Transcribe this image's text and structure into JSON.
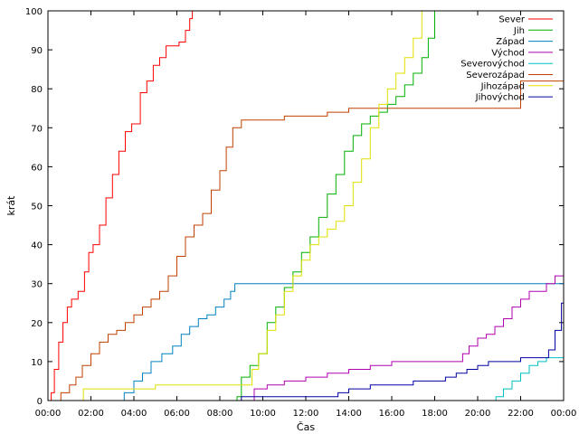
{
  "chart_data": {
    "type": "line",
    "title": "",
    "xlabel": "Čas",
    "ylabel": "krát",
    "xlim": [
      0,
      24
    ],
    "ylim": [
      0,
      100
    ],
    "x_ticks": [
      {
        "value": 0,
        "label": "00:00"
      },
      {
        "value": 2,
        "label": "02:00"
      },
      {
        "value": 4,
        "label": "04:00"
      },
      {
        "value": 6,
        "label": "06:00"
      },
      {
        "value": 8,
        "label": "08:00"
      },
      {
        "value": 10,
        "label": "10:00"
      },
      {
        "value": 12,
        "label": "12:00"
      },
      {
        "value": 14,
        "label": "14:00"
      },
      {
        "value": 16,
        "label": "16:00"
      },
      {
        "value": 18,
        "label": "18:00"
      },
      {
        "value": 20,
        "label": "20:00"
      },
      {
        "value": 22,
        "label": "22:00"
      },
      {
        "value": 24,
        "label": "00:00"
      }
    ],
    "y_ticks": [
      0,
      10,
      20,
      30,
      40,
      50,
      60,
      70,
      80,
      90,
      100
    ],
    "grid": false,
    "legend_position": "top-right",
    "series": [
      {
        "name": "Sever",
        "color": "#ff0000",
        "x": [
          0.1,
          0.15,
          0.3,
          0.5,
          0.7,
          0.9,
          1.1,
          1.4,
          1.7,
          1.9,
          2.1,
          2.4,
          2.7,
          3.0,
          3.3,
          3.6,
          3.9,
          4.3,
          4.6,
          4.9,
          5.2,
          5.5,
          5.8,
          6.1,
          6.4,
          6.6,
          6.72
        ],
        "y": [
          0,
          2,
          8,
          15,
          20,
          24,
          26,
          28,
          33,
          38,
          40,
          45,
          52,
          58,
          64,
          69,
          71,
          79,
          82,
          86,
          88,
          91,
          91,
          92,
          95,
          98,
          100
        ]
      },
      {
        "name": "Jih",
        "color": "#00b000",
        "x": [
          0,
          8.8,
          9.0,
          9.4,
          9.8,
          10.2,
          10.6,
          11.0,
          11.4,
          11.8,
          12.2,
          12.6,
          13.0,
          13.4,
          13.8,
          14.2,
          14.6,
          15.0,
          15.4,
          15.8,
          16.2,
          16.6,
          17.0,
          17.4,
          17.7,
          18.0
        ],
        "y": [
          0,
          1,
          6,
          9,
          12,
          20,
          24,
          29,
          33,
          38,
          42,
          47,
          53,
          58,
          64,
          68,
          71,
          73,
          74,
          76,
          78,
          81,
          84,
          88,
          93,
          100
        ]
      },
      {
        "name": "Západ",
        "color": "#0080c0",
        "x": [
          0,
          3.5,
          3.55,
          4.0,
          4.4,
          4.8,
          5.3,
          5.8,
          6.2,
          6.6,
          7.0,
          7.4,
          7.8,
          8.2,
          8.5,
          8.7,
          24.0
        ],
        "y": [
          0,
          0,
          2,
          5,
          7,
          10,
          12,
          14,
          17,
          19,
          21,
          22,
          24,
          26,
          28,
          30,
          30
        ]
      },
      {
        "name": "Východ",
        "color": "#b000b0",
        "x": [
          0,
          9.3,
          9.6,
          10.2,
          11.0,
          12.0,
          13.0,
          14.0,
          15.0,
          16.0,
          17.0,
          18.0,
          19.0,
          19.3,
          19.6,
          20.0,
          20.4,
          20.8,
          21.2,
          21.6,
          22.0,
          22.4,
          22.8,
          23.2,
          23.6,
          24.0
        ],
        "y": [
          0,
          0,
          3,
          4,
          5,
          6,
          7,
          8,
          9,
          10,
          10,
          10,
          10,
          12,
          14,
          16,
          17,
          19,
          21,
          24,
          26,
          28,
          28,
          30,
          32,
          34
        ]
      },
      {
        "name": "Severovýchod",
        "color": "#00c0c0",
        "x": [
          0,
          20.8,
          20.85,
          21.2,
          21.6,
          22.0,
          22.4,
          22.8,
          23.2,
          23.6,
          24.0
        ],
        "y": [
          0,
          0,
          1,
          3,
          5,
          7,
          9,
          10,
          11,
          11,
          11
        ]
      },
      {
        "name": "Severozápad",
        "color": "#c04000",
        "x": [
          0,
          0.6,
          1.0,
          1.3,
          1.6,
          2.0,
          2.4,
          2.8,
          3.2,
          3.6,
          4.0,
          4.4,
          4.8,
          5.2,
          5.6,
          6.0,
          6.4,
          6.8,
          7.2,
          7.6,
          8.0,
          8.3,
          8.6,
          9.0,
          11.0,
          12.5,
          13.0,
          14.0,
          16.0,
          18.0,
          21.9,
          22.0,
          24.0
        ],
        "y": [
          0,
          2,
          4,
          6,
          9,
          12,
          15,
          17,
          18,
          20,
          22,
          24,
          26,
          28,
          32,
          37,
          42,
          45,
          48,
          54,
          59,
          65,
          70,
          72,
          73,
          73,
          74,
          75,
          75,
          75,
          75,
          82,
          82
        ]
      },
      {
        "name": "Jihozápad",
        "color": "#e0e000",
        "x": [
          0,
          1.6,
          1.65,
          5.0,
          8.0,
          9.2,
          9.5,
          9.8,
          10.2,
          10.6,
          11.0,
          11.4,
          11.8,
          12.2,
          12.6,
          13.0,
          13.4,
          13.8,
          14.2,
          14.6,
          15.0,
          15.4,
          15.8,
          16.2,
          16.6,
          17.0,
          17.4
        ],
        "y": [
          0,
          0,
          3,
          4,
          4,
          4,
          8,
          12,
          18,
          22,
          28,
          32,
          36,
          40,
          42,
          44,
          46,
          50,
          56,
          62,
          70,
          76,
          80,
          84,
          88,
          93,
          100
        ]
      },
      {
        "name": "Jihovýchod",
        "color": "#0000a0",
        "x": [
          0,
          8.9,
          9.0,
          12.0,
          13.5,
          14.0,
          15.0,
          16.0,
          17.0,
          18.0,
          18.5,
          19.0,
          19.5,
          20.0,
          20.5,
          21.0,
          22.0,
          22.5,
          23.0,
          23.3,
          23.6,
          23.9,
          24.0
        ],
        "y": [
          0,
          0,
          1,
          1,
          2,
          3,
          4,
          4,
          5,
          5,
          6,
          7,
          8,
          9,
          10,
          10,
          11,
          11,
          11,
          13,
          18,
          25,
          29
        ]
      }
    ]
  }
}
